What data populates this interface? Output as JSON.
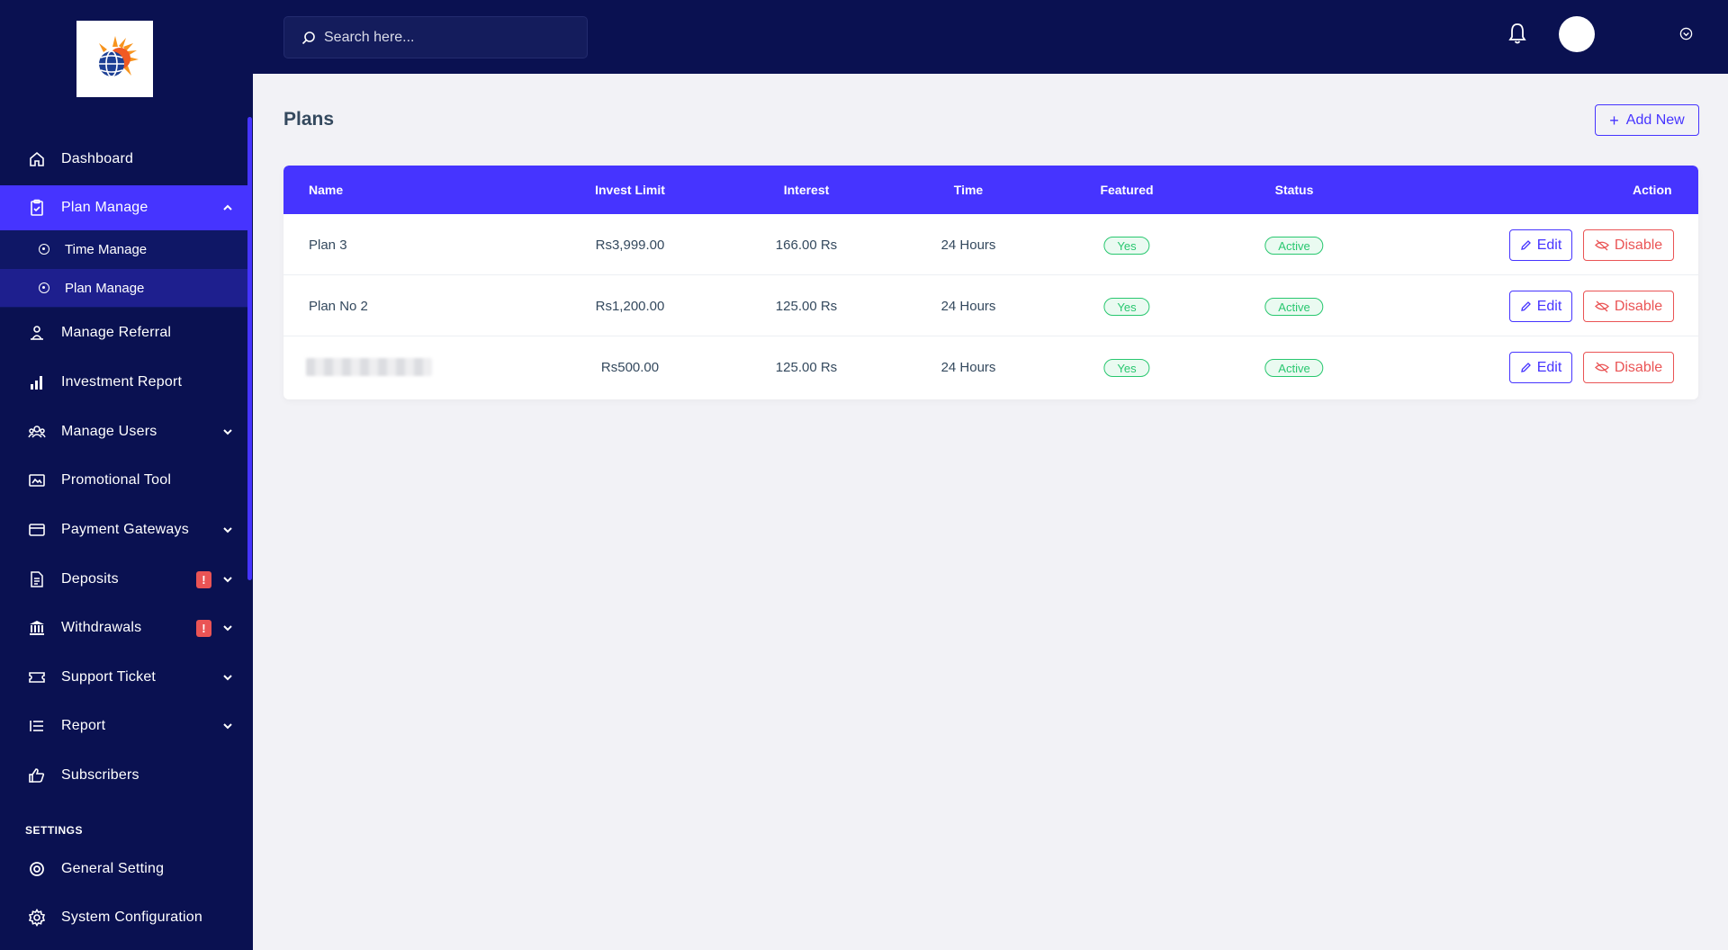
{
  "brand": {
    "logo_icon": "globe-sun-logo"
  },
  "search": {
    "placeholder": "Search here..."
  },
  "sidebar": {
    "items": [
      {
        "label": "Dashboard",
        "icon": "home-icon"
      },
      {
        "label": "Plan Manage",
        "icon": "clipboard-icon"
      },
      {
        "label": "Manage Referral",
        "icon": "referral-icon"
      },
      {
        "label": "Investment Report",
        "icon": "bar-chart-icon"
      },
      {
        "label": "Manage Users",
        "icon": "users-icon"
      },
      {
        "label": "Promotional Tool",
        "icon": "image-icon"
      },
      {
        "label": "Payment Gateways",
        "icon": "credit-card-icon"
      },
      {
        "label": "Deposits",
        "icon": "invoice-icon",
        "badge": "!"
      },
      {
        "label": "Withdrawals",
        "icon": "bank-icon",
        "badge": "!"
      },
      {
        "label": "Support Ticket",
        "icon": "ticket-icon"
      },
      {
        "label": "Report",
        "icon": "list-icon"
      },
      {
        "label": "Subscribers",
        "icon": "thumbs-up-icon"
      },
      {
        "label": "General Setting",
        "icon": "life-ring-icon"
      },
      {
        "label": "System Configuration",
        "icon": "gear-icon"
      }
    ],
    "submenu": [
      {
        "label": "Time Manage"
      },
      {
        "label": "Plan Manage"
      }
    ],
    "settings_heading": "SETTINGS"
  },
  "page": {
    "title": "Plans",
    "add_new_label": "Add New"
  },
  "table": {
    "headers": [
      "Name",
      "Invest Limit",
      "Interest",
      "Time",
      "Featured",
      "Status",
      "Action"
    ],
    "rows": [
      {
        "name": "Plan 3",
        "invest_limit": "Rs3,999.00",
        "interest": "166.00 Rs",
        "time": "24 Hours",
        "featured": "Yes",
        "status": "Active",
        "edit": "Edit",
        "disable": "Disable"
      },
      {
        "name": "Plan No 2",
        "invest_limit": "Rs1,200.00",
        "interest": "125.00 Rs",
        "time": "24 Hours",
        "featured": "Yes",
        "status": "Active",
        "edit": "Edit",
        "disable": "Disable"
      },
      {
        "name": "",
        "invest_limit": "Rs500.00",
        "interest": "125.00 Rs",
        "time": "24 Hours",
        "featured": "Yes",
        "status": "Active",
        "edit": "Edit",
        "disable": "Disable"
      }
    ]
  },
  "colors": {
    "sidebar_bg": "#0a1151",
    "accent": "#4634ff",
    "success": "#28c76f",
    "danger": "#ea5455"
  }
}
